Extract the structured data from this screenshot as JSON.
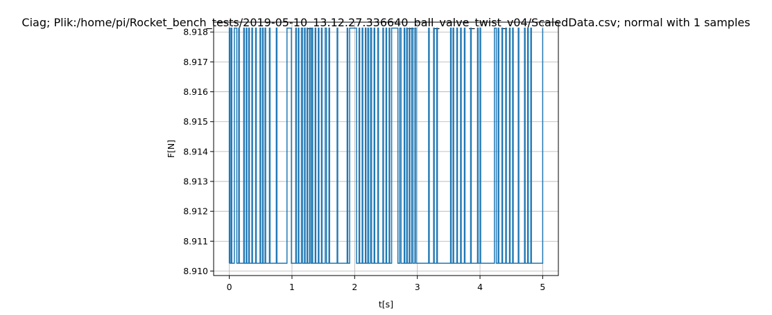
{
  "chart_data": {
    "type": "line",
    "title": "Ciag; Plik:/home/pi/Rocket_bench_tests/2019-05-10_13.12.27.336640_ball_valve_twist_v04/ScaledData.csv; normal with 1 samples",
    "xlabel": "t[s]",
    "ylabel": "F[N]",
    "xlim": [
      -0.25,
      5.25
    ],
    "ylim": [
      8.90985,
      8.91833
    ],
    "xticks": [
      0,
      1,
      2,
      3,
      4,
      5
    ],
    "xtick_labels": [
      "0",
      "1",
      "2",
      "3",
      "4",
      "5"
    ],
    "yticks": [
      8.91,
      8.911,
      8.912,
      8.913,
      8.914,
      8.915,
      8.916,
      8.917,
      8.918
    ],
    "ytick_labels": [
      "8.910",
      "8.911",
      "8.912",
      "8.913",
      "8.914",
      "8.915",
      "8.916",
      "8.917",
      "8.918"
    ],
    "grid": true,
    "levels": {
      "low": 8.91026,
      "high": 8.91813
    },
    "series": [
      {
        "color": "#1f77b4",
        "high_pulses": [
          [
            0.0,
            0.01
          ],
          [
            0.03,
            0.04
          ],
          [
            0.08,
            0.12
          ],
          [
            0.15,
            0.16
          ],
          [
            0.23,
            0.24
          ],
          [
            0.27,
            0.28
          ],
          [
            0.31,
            0.32
          ],
          [
            0.36,
            0.37
          ],
          [
            0.42,
            0.43
          ],
          [
            0.49,
            0.5
          ],
          [
            0.53,
            0.54
          ],
          [
            0.57,
            0.58
          ],
          [
            0.64,
            0.65
          ],
          [
            0.75,
            0.76
          ],
          [
            0.92,
            0.99
          ],
          [
            1.06,
            1.07
          ],
          [
            1.1,
            1.11
          ],
          [
            1.15,
            1.17
          ],
          [
            1.2,
            1.21
          ],
          [
            1.24,
            1.25
          ],
          [
            1.28,
            1.3
          ],
          [
            1.32,
            1.33
          ],
          [
            1.37,
            1.38
          ],
          [
            1.42,
            1.43
          ],
          [
            1.47,
            1.48
          ],
          [
            1.53,
            1.55
          ],
          [
            1.59,
            1.6
          ],
          [
            1.72,
            1.73
          ],
          [
            1.88,
            1.89
          ],
          [
            1.92,
            2.03
          ],
          [
            2.07,
            2.08
          ],
          [
            2.12,
            2.13
          ],
          [
            2.17,
            2.18
          ],
          [
            2.21,
            2.22
          ],
          [
            2.25,
            2.27
          ],
          [
            2.31,
            2.32
          ],
          [
            2.37,
            2.38
          ],
          [
            2.45,
            2.46
          ],
          [
            2.5,
            2.51
          ],
          [
            2.55,
            2.56
          ],
          [
            2.59,
            2.69
          ],
          [
            2.72,
            2.74
          ],
          [
            2.79,
            2.8
          ],
          [
            2.83,
            2.84
          ],
          [
            2.87,
            2.88
          ],
          [
            2.91,
            2.93
          ],
          [
            2.96,
            2.98
          ],
          [
            3.18,
            3.19
          ],
          [
            3.26,
            3.27
          ],
          [
            3.31,
            3.32
          ],
          [
            3.53,
            3.54
          ],
          [
            3.57,
            3.58
          ],
          [
            3.63,
            3.64
          ],
          [
            3.69,
            3.7
          ],
          [
            3.75,
            3.76
          ],
          [
            3.85,
            3.86
          ],
          [
            3.96,
            3.97
          ],
          [
            4.0,
            4.01
          ],
          [
            4.23,
            4.26
          ],
          [
            4.29,
            4.3
          ],
          [
            4.35,
            4.36
          ],
          [
            4.41,
            4.42
          ],
          [
            4.47,
            4.48
          ],
          [
            4.52,
            4.53
          ],
          [
            4.61,
            4.62
          ],
          [
            4.71,
            4.72
          ],
          [
            4.76,
            4.77
          ],
          [
            4.81,
            4.82
          ],
          [
            5.0,
            5.0
          ]
        ]
      }
    ]
  }
}
